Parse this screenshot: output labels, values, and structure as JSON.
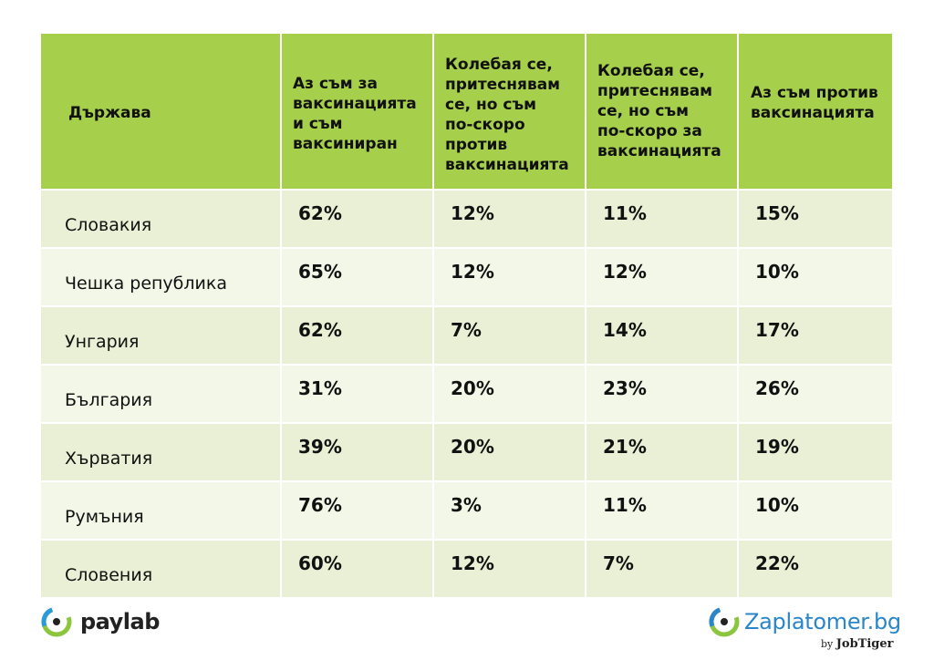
{
  "table": {
    "headers": [
      "Държава",
      "Аз съм за\nваксинацията\nи съм\nваксиниран",
      "Колебая се,\nпритеснявам\nсе, но съм\nпо-скоро\nпротив\nваксинацията",
      "Колебая се,\nпритеснявам\nсе, но съм\nпо-скоро за\nваксинацията",
      "Аз съм против\nваксинацията"
    ],
    "rows": [
      [
        "Словакия",
        "62%",
        "12%",
        "11%",
        "15%"
      ],
      [
        "Чешка република",
        "65%",
        "12%",
        "12%",
        "10%"
      ],
      [
        "Унгария",
        "62%",
        "7%",
        "14%",
        "17%"
      ],
      [
        "България",
        "31%",
        "20%",
        "23%",
        "26%"
      ],
      [
        "Хърватия",
        "39%",
        "20%",
        "21%",
        "19%"
      ],
      [
        "Румъния",
        "76%",
        "3%",
        "11%",
        "10%"
      ],
      [
        "Словения",
        "60%",
        "12%",
        "7%",
        "22%"
      ]
    ]
  },
  "chart_data": {
    "type": "table",
    "columns": [
      "Държава",
      "Аз съм за ваксинацията и съм ваксиниран",
      "Колебая се, притеснявам се, но съм по-скоро против ваксинацията",
      "Колебая се, притеснявам се, но съм по-скоро за ваксинацията",
      "Аз съм против ваксинацията"
    ],
    "rows": [
      [
        "Словакия",
        62,
        12,
        11,
        15
      ],
      [
        "Чешка република",
        65,
        12,
        12,
        10
      ],
      [
        "Унгария",
        62,
        7,
        14,
        17
      ],
      [
        "България",
        31,
        20,
        23,
        26
      ],
      [
        "Хърватия",
        39,
        20,
        21,
        19
      ],
      [
        "Румъния",
        76,
        3,
        11,
        10
      ],
      [
        "Словения",
        60,
        12,
        7,
        22
      ]
    ],
    "unit": "%"
  },
  "logos": {
    "left": "paylab",
    "right": "Zaplatomer.bg",
    "right_by": "by",
    "right_by_brand": "JobTiger"
  },
  "colors": {
    "header_bg": "#a6cf4b",
    "row_odd": "#e9f0d5",
    "row_even": "#f3f7e8",
    "paylab_green": "#8cc63f",
    "zaplatomer_blue": "#2a86c8"
  }
}
